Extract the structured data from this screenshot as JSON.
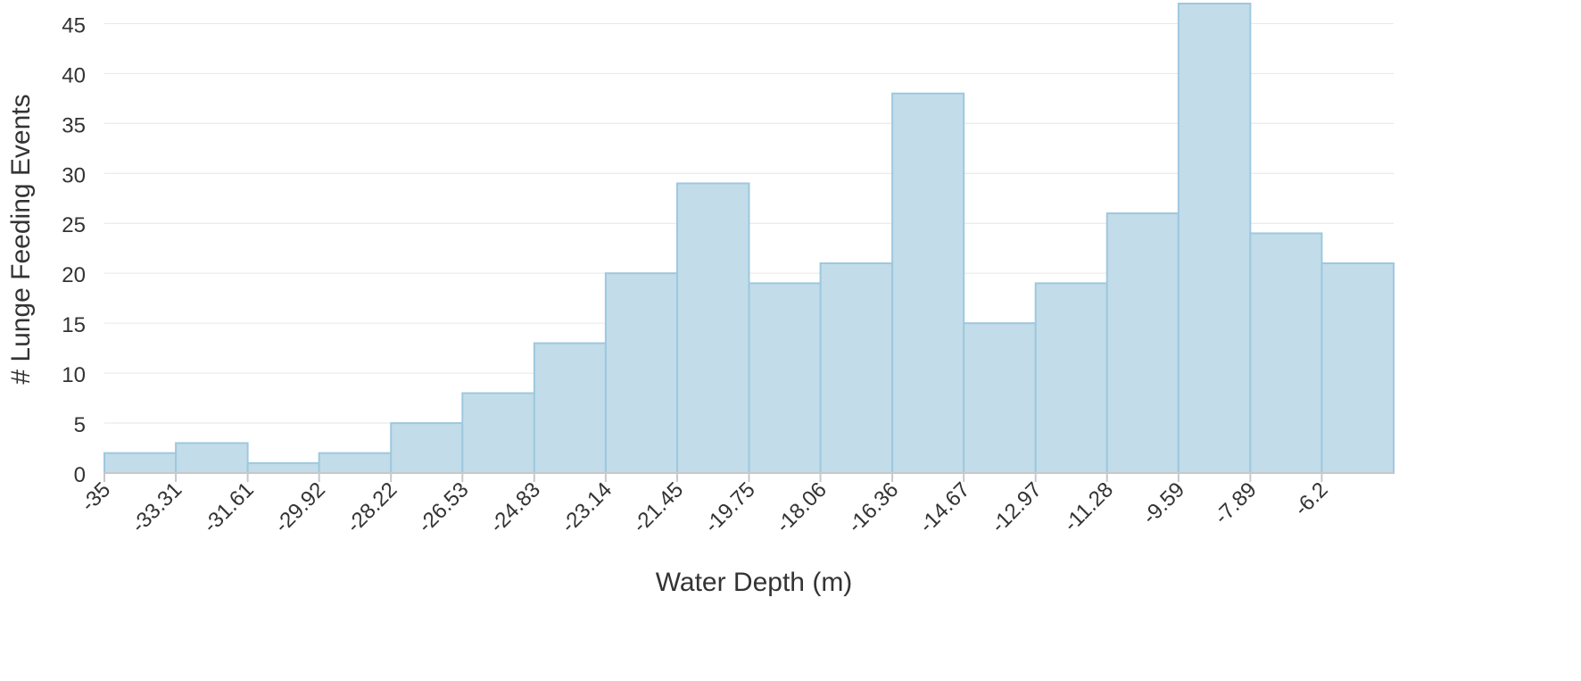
{
  "chart_data": {
    "type": "bar",
    "subtype": "histogram",
    "title": "",
    "xlabel": "Water Depth (m)",
    "ylabel": "# Lunge Feeding Events",
    "x_ticks": [
      "-35",
      "-33.31",
      "-31.61",
      "-29.92",
      "-28.22",
      "-26.53",
      "-24.83",
      "-23.14",
      "-21.45",
      "-19.75",
      "-18.06",
      "-16.36",
      "-14.67",
      "-12.97",
      "-11.28",
      "-9.59",
      "-7.89",
      "-6.2"
    ],
    "y_ticks": [
      "0",
      "5",
      "10",
      "15",
      "20",
      "25",
      "30",
      "35",
      "40",
      "45"
    ],
    "bin_edges": [
      -35,
      -33.31,
      -31.61,
      -29.92,
      -28.22,
      -26.53,
      -24.83,
      -23.14,
      -21.45,
      -19.75,
      -18.06,
      -16.36,
      -14.67,
      -12.97,
      -11.28,
      -9.59,
      -7.89,
      -6.2,
      -4.5
    ],
    "values": [
      2,
      3,
      1,
      2,
      5,
      8,
      13,
      20,
      29,
      19,
      21,
      38,
      15,
      19,
      26,
      47,
      24,
      21
    ],
    "ylim": [
      0,
      47
    ],
    "grid": true,
    "bar_color": "#c2dce9",
    "bar_edge_color": "#9ec8df"
  }
}
